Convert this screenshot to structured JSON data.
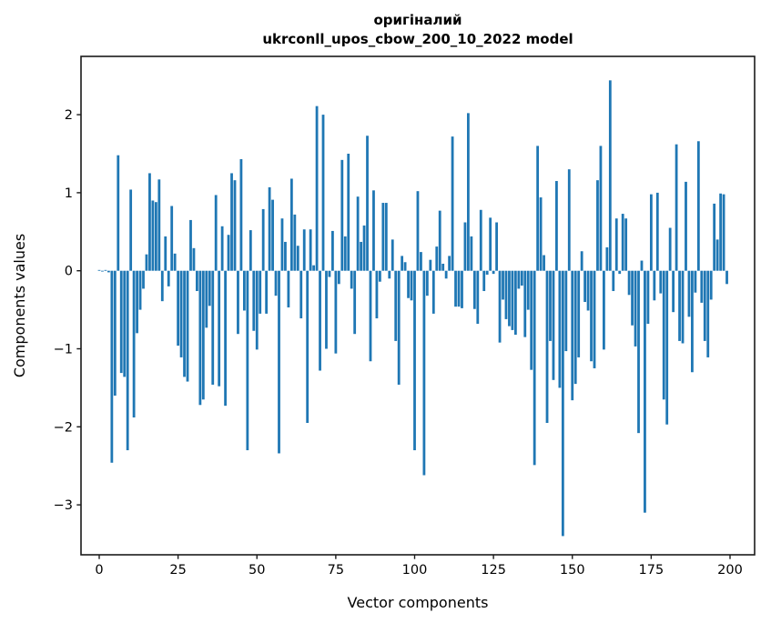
{
  "figure": {
    "title_line1": "оригіналий",
    "title_line2": "ukrconll_upos_cbow_200_10_2022 model",
    "xlabel": "Vector components",
    "ylabel": "Components values"
  },
  "chart_data": {
    "type": "bar",
    "title": "оригіналий\nukrconll_upos_cbow_200_10_2022 model",
    "xlabel": "Vector components",
    "ylabel": "Components values",
    "bar_color": "#1f77b4",
    "background_color": "#ffffff",
    "spine_color": "#1a1a1a",
    "grid": false,
    "legend_position": "none",
    "n_bars": 200,
    "x_start": 0,
    "xticks": [
      0,
      25,
      50,
      75,
      100,
      125,
      150,
      175,
      200
    ],
    "yticks": [
      2,
      1,
      0,
      -1,
      -2,
      -3
    ],
    "xlim": [
      -10.6,
      210.6
    ],
    "ylim": [
      -3.64,
      2.75
    ],
    "values": [
      0.01,
      -0.01,
      0.01,
      -0.02,
      -2.46,
      -1.6,
      1.48,
      -1.31,
      -1.36,
      -2.3,
      1.04,
      -1.88,
      -0.8,
      -0.5,
      -0.23,
      0.21,
      1.25,
      0.9,
      0.88,
      1.17,
      -0.39,
      0.44,
      -0.2,
      0.83,
      0.22,
      -0.96,
      -1.11,
      -1.36,
      -1.42,
      0.65,
      0.29,
      -0.26,
      -1.72,
      -1.65,
      -0.73,
      -0.45,
      -1.46,
      0.97,
      -1.48,
      0.57,
      -1.73,
      0.46,
      1.25,
      1.16,
      -0.81,
      1.43,
      -0.51,
      -2.3,
      0.52,
      -0.77,
      -1.01,
      -0.55,
      0.79,
      -0.55,
      1.07,
      0.91,
      -0.32,
      -2.34,
      0.67,
      0.37,
      -0.47,
      1.18,
      0.72,
      0.32,
      -0.61,
      0.53,
      -1.95,
      0.53,
      0.07,
      2.11,
      -1.28,
      2.0,
      -1.0,
      -0.08,
      0.51,
      -1.06,
      -0.17,
      1.42,
      0.44,
      1.5,
      -0.23,
      -0.81,
      0.95,
      0.37,
      0.58,
      1.73,
      -1.16,
      1.03,
      -0.61,
      -0.14,
      0.87,
      0.87,
      -0.1,
      0.4,
      -0.9,
      -1.46,
      0.19,
      0.11,
      -0.35,
      -0.38,
      -2.3,
      1.02,
      0.24,
      -2.62,
      -0.32,
      0.14,
      -0.55,
      0.31,
      0.77,
      0.09,
      -0.1,
      0.19,
      1.72,
      -0.46,
      -0.46,
      -0.48,
      0.62,
      2.02,
      0.44,
      -0.49,
      -0.68,
      0.78,
      -0.26,
      -0.05,
      0.68,
      -0.04,
      0.62,
      -0.92,
      -0.37,
      -0.62,
      -0.71,
      -0.76,
      -0.82,
      -0.23,
      -0.19,
      -0.85,
      -0.5,
      -1.27,
      -2.49,
      1.6,
      0.94,
      0.2,
      -1.95,
      -0.9,
      -1.4,
      1.15,
      -1.5,
      -3.4,
      -1.03,
      1.3,
      -1.66,
      -1.45,
      -1.11,
      0.25,
      -0.4,
      -0.51,
      -1.16,
      -1.25,
      1.16,
      1.6,
      -1.01,
      0.3,
      2.44,
      -0.26,
      0.67,
      -0.04,
      0.73,
      0.67,
      -0.31,
      -0.7,
      -0.97,
      -2.08,
      0.13,
      -3.1,
      -0.68,
      0.98,
      -0.38,
      1.0,
      -0.29,
      -1.65,
      -1.97,
      0.55,
      -0.53,
      1.62,
      -0.9,
      -0.93,
      1.14,
      -0.59,
      -1.3,
      -0.28,
      1.66,
      -0.41,
      -0.9,
      -1.11,
      -0.37,
      0.86,
      0.4,
      0.99,
      0.98,
      -0.17
    ]
  }
}
